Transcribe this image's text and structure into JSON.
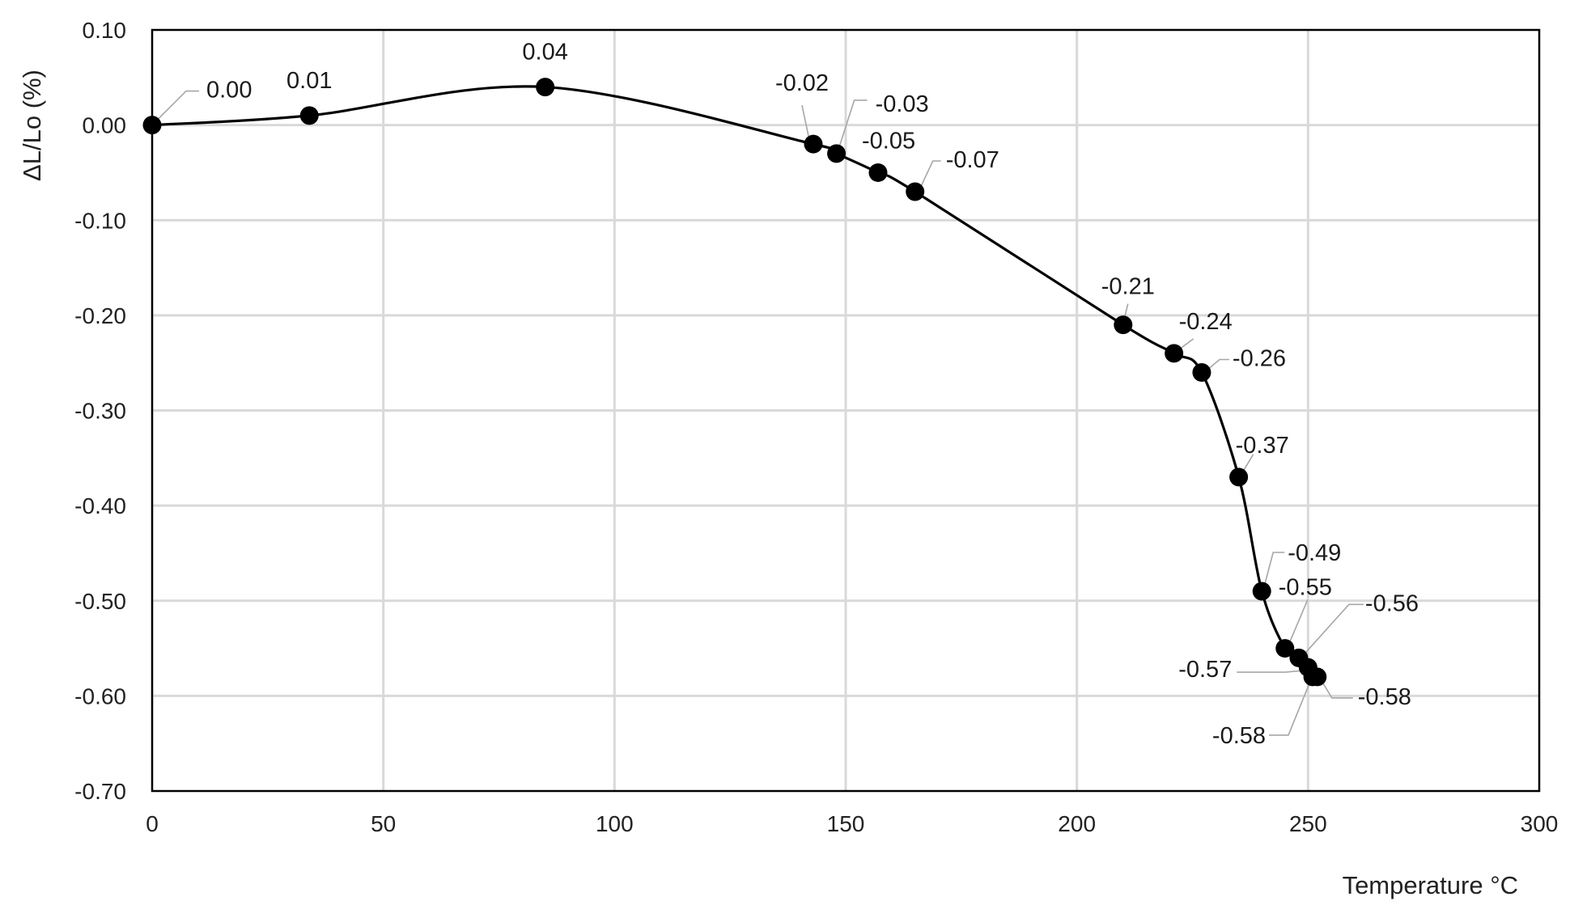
{
  "chart_data": {
    "type": "scatter",
    "title": "",
    "xlabel": "Temperature °C",
    "ylabel": "ΔL/Lo (%)",
    "xlim": [
      0,
      300
    ],
    "ylim": [
      -0.7,
      0.1
    ],
    "x_ticks": [
      "0",
      "50",
      "100",
      "150",
      "200",
      "250",
      "300"
    ],
    "y_ticks": [
      "0.10",
      "0.00",
      "-0.10",
      "-0.20",
      "-0.30",
      "-0.40",
      "-0.50",
      "-0.60",
      "-0.70"
    ],
    "grid": true,
    "legend": "none",
    "line_style": "smoothed line with markers",
    "colors": {
      "line": "#000000",
      "marker": "#000000",
      "grid": "#d9d9d9",
      "leader": "#a6a6a6",
      "frame": "#000000"
    },
    "series": [
      {
        "x": [
          0,
          34,
          85,
          143,
          148,
          157,
          165,
          210,
          221,
          227,
          235,
          240,
          245,
          248,
          250,
          251,
          252
        ],
        "y": [
          0.0,
          0.01,
          0.04,
          -0.02,
          -0.03,
          -0.05,
          -0.07,
          -0.21,
          -0.24,
          -0.26,
          -0.37,
          -0.49,
          -0.55,
          -0.56,
          -0.57,
          -0.58,
          -0.58
        ],
        "labels": [
          "0.00",
          "0.01",
          "0.04",
          "-0.02",
          "-0.03",
          "-0.05",
          "-0.07",
          "-0.21",
          "-0.24",
          "-0.26",
          "-0.37",
          "-0.49",
          "-0.55",
          "-0.56",
          "-0.57",
          "-0.58",
          "-0.58"
        ]
      }
    ]
  }
}
